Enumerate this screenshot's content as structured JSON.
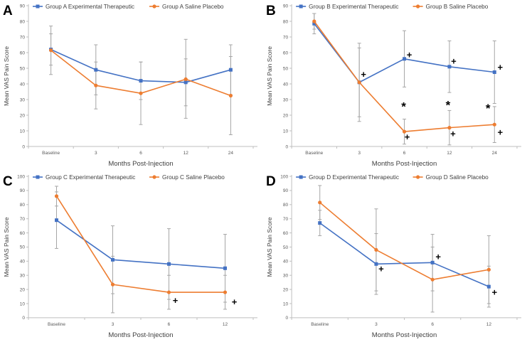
{
  "figure_title": "",
  "colors": {
    "experimental": "#4472C4",
    "placebo": "#ED7D31",
    "error_bar": "#A6A6A6",
    "axis": "#BFBFBF",
    "tick_text": "#595959",
    "axis_title_text": "#404040",
    "annotation": "#000000",
    "panel_letter": "#000000",
    "background": "#ffffff"
  },
  "chart_data": [
    {
      "panel": "A",
      "type": "line",
      "title": "",
      "xlabel": "Months Post-Injection",
      "ylabel": "Mean VAS Pain Score",
      "categories": [
        "Baseline",
        "3",
        "6",
        "12",
        "24"
      ],
      "ylim": [
        0,
        90
      ],
      "ytick_step": 10,
      "grid": false,
      "legend_position": "top",
      "series": [
        {
          "name": "Group A Experimental Therapeutic",
          "color_key": "experimental",
          "marker": "square",
          "values": [
            62,
            49,
            42,
            41,
            49
          ],
          "err_low": [
            10,
            16,
            12,
            15,
            16
          ],
          "err_high": [
            10,
            16,
            12,
            15,
            16
          ]
        },
        {
          "name": "Group A Saline Placebo",
          "color_key": "placebo",
          "marker": "circle",
          "values": [
            61.5,
            39,
            34,
            43,
            32.5
          ],
          "err_low": [
            15.5,
            15,
            20,
            25,
            25
          ],
          "err_high": [
            15.5,
            15,
            20,
            25.5,
            25
          ]
        }
      ],
      "annotations": []
    },
    {
      "panel": "B",
      "type": "line",
      "title": "",
      "xlabel": "Months Post-Injection",
      "ylabel": "Mean VAS Pain Score",
      "categories": [
        "Baseline",
        "3",
        "6",
        "12",
        "24"
      ],
      "ylim": [
        0,
        90
      ],
      "ytick_step": 10,
      "grid": false,
      "legend_position": "top",
      "series": [
        {
          "name": "Group B Experimental Therapeutic",
          "color_key": "experimental",
          "marker": "square",
          "values": [
            78.5,
            41,
            56,
            51,
            47.5
          ],
          "err_low": [
            6.5,
            22,
            18,
            16.5,
            20
          ],
          "err_high": [
            6.5,
            22,
            18,
            16.5,
            20
          ]
        },
        {
          "name": "Group B Saline Placebo",
          "color_key": "placebo",
          "marker": "circle",
          "values": [
            80,
            41,
            9.5,
            12,
            14
          ],
          "err_low": [
            5,
            25,
            8,
            11,
            11.5
          ],
          "err_high": [
            5,
            25,
            8,
            11,
            11.5
          ]
        }
      ],
      "annotations": [
        {
          "symbol": "+",
          "x_index": 1,
          "y_value": 46,
          "dx": 6
        },
        {
          "symbol": "+",
          "x_index": 2,
          "y_value": 58.5,
          "dx": 7
        },
        {
          "symbol": "+",
          "x_index": 3,
          "y_value": 54.5,
          "dx": 6
        },
        {
          "symbol": "+",
          "x_index": 4,
          "y_value": 50.5,
          "dx": 8
        },
        {
          "symbol": "*",
          "x_index": 2,
          "y_value": 27,
          "dx": -1
        },
        {
          "symbol": "*",
          "x_index": 3,
          "y_value": 28,
          "dx": -2
        },
        {
          "symbol": "*",
          "x_index": 4,
          "y_value": 26,
          "dx": -9
        },
        {
          "symbol": "+",
          "x_index": 2,
          "y_value": 6,
          "dx": 4
        },
        {
          "symbol": "+",
          "x_index": 3,
          "y_value": 8,
          "dx": 5
        },
        {
          "symbol": "+",
          "x_index": 4,
          "y_value": 9,
          "dx": 8
        }
      ]
    },
    {
      "panel": "C",
      "type": "line",
      "title": "",
      "xlabel": "Months Post-Injection",
      "ylabel": "Mean VAS Pain Score",
      "categories": [
        "Baseline",
        "3",
        "6",
        "12"
      ],
      "ylim": [
        0,
        100
      ],
      "ytick_step": 10,
      "grid": false,
      "legend_position": "top",
      "series": [
        {
          "name": "Group C Experimental Therapeutic",
          "color_key": "experimental",
          "marker": "square",
          "values": [
            69,
            41,
            38,
            35
          ],
          "err_low": [
            20,
            24,
            25,
            24
          ],
          "err_high": [
            20,
            24,
            25,
            24
          ]
        },
        {
          "name": "Group C Saline Placebo",
          "color_key": "placebo",
          "marker": "circle",
          "values": [
            86,
            23.5,
            18,
            18
          ],
          "err_low": [
            7,
            20,
            12,
            12
          ],
          "err_high": [
            7,
            20,
            12,
            12
          ]
        }
      ],
      "annotations": [
        {
          "symbol": "+",
          "x_index": 2,
          "y_value": 12,
          "dx": 9
        },
        {
          "symbol": "+",
          "x_index": 3,
          "y_value": 11,
          "dx": 13
        }
      ]
    },
    {
      "panel": "D",
      "type": "line",
      "title": "",
      "xlabel": "Months Post-Injection",
      "ylabel": "Mean VAS Pain Score",
      "categories": [
        "Baseline",
        "3",
        "6",
        "12"
      ],
      "ylim": [
        0,
        100
      ],
      "ytick_step": 10,
      "grid": false,
      "legend_position": "top",
      "series": [
        {
          "name": "Group D Experimental Therapeutic",
          "color_key": "experimental",
          "marker": "square",
          "values": [
            67,
            38,
            39,
            22
          ],
          "err_low": [
            9,
            21.5,
            20,
            14.5
          ],
          "err_high": [
            9,
            21.5,
            20,
            14.5
          ]
        },
        {
          "name": "Group D Saline Placebo",
          "color_key": "placebo",
          "marker": "circle",
          "values": [
            81.5,
            48,
            27,
            34
          ],
          "err_low": [
            12,
            29,
            23,
            24
          ],
          "err_high": [
            12,
            29,
            23,
            24
          ]
        }
      ],
      "annotations": [
        {
          "symbol": "+",
          "x_index": 1,
          "y_value": 34.5,
          "dx": 7
        },
        {
          "symbol": "+",
          "x_index": 2,
          "y_value": 43,
          "dx": 8
        },
        {
          "symbol": "+",
          "x_index": 3,
          "y_value": 18,
          "dx": 8
        }
      ]
    }
  ]
}
